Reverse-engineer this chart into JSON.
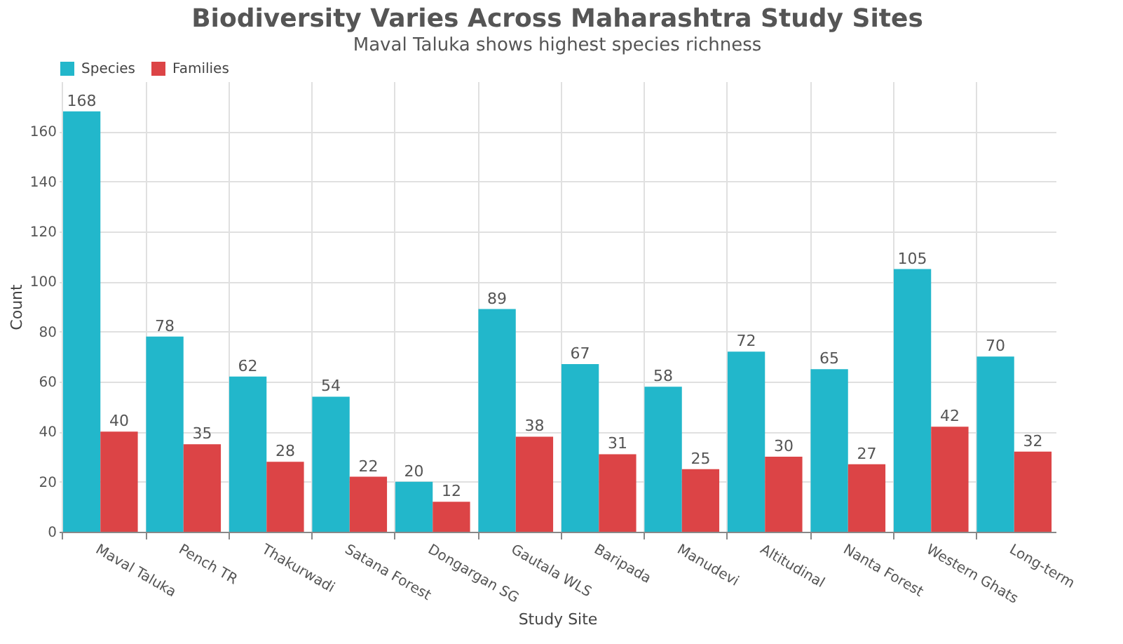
{
  "chart_data": {
    "type": "bar",
    "title": "Biodiversity Varies Across Maharashtra Study Sites",
    "subtitle": "Maval Taluka shows highest species richness",
    "xlabel": "Study Site",
    "ylabel": "Count",
    "categories": [
      "Maval Taluka",
      "Pench TR",
      "Thakurwadi",
      "Satana Forest",
      "Dongargan SG",
      "Gautala WLS",
      "Baripada",
      "Manudevi",
      "Altitudinal",
      "Nanta Forest",
      "Western Ghats",
      "Long-term"
    ],
    "series": [
      {
        "name": "Species",
        "color": "#22b7cb",
        "values": [
          168,
          78,
          62,
          54,
          20,
          89,
          67,
          58,
          72,
          65,
          105,
          70
        ]
      },
      {
        "name": "Families",
        "color": "#dc4446",
        "values": [
          40,
          35,
          28,
          22,
          12,
          38,
          31,
          25,
          30,
          27,
          42,
          32
        ]
      }
    ],
    "ylim": [
      0,
      180
    ],
    "yticks": [
      0,
      20,
      40,
      60,
      80,
      100,
      120,
      140,
      160
    ],
    "grid": true,
    "legend": "top",
    "data_labels": true
  }
}
